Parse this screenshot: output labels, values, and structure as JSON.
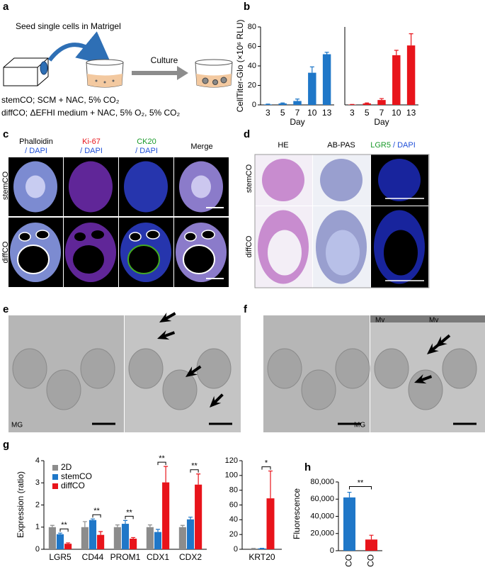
{
  "panel_labels": [
    "a",
    "b",
    "c",
    "d",
    "e",
    "f",
    "g",
    "h"
  ],
  "panel_a": {
    "seed": "Seed single cells in Matrigel",
    "culture": "Culture",
    "stemco_condition": "stemCO; SCM + NAC, 5% CO₂",
    "diffco_condition": "diffCO; ΔEFHI medium + NAC, 5% O₂, 5% CO₂"
  },
  "panel_c": {
    "headers": [
      {
        "stain": "Phalloidin",
        "counter": "/ DAPI"
      },
      {
        "stain": "Ki-67",
        "counter": "/ DAPI"
      },
      {
        "stain": "CK20",
        "counter": "/ DAPI"
      },
      {
        "stain": "Merge"
      }
    ],
    "rows": [
      "stemCO",
      "diffCO"
    ]
  },
  "panel_d": {
    "headers": [
      {
        "stain": "HE"
      },
      {
        "stain": "AB-PAS"
      },
      {
        "stain": "LGR5",
        "counter": "/ DAPI"
      }
    ],
    "rows": [
      "stemCO",
      "diffCO"
    ]
  },
  "panel_e": {
    "labels": [
      "MG"
    ]
  },
  "panel_f": {
    "labels": [
      "Mv",
      "Mv",
      "MG"
    ]
  },
  "chart_data": [
    {
      "type": "bar",
      "ylabel": "CellTiter-Glo (×10⁶ RLU)",
      "xlabel": "Day",
      "categories": [
        "3",
        "5",
        "7",
        "10",
        "13"
      ],
      "values": [
        0.5,
        1.5,
        4,
        33,
        52
      ],
      "errors": [
        0.3,
        0.5,
        2,
        6,
        2
      ],
      "color": "#1f77c8",
      "ylim": [
        0,
        80
      ],
      "yticks": [
        0,
        20,
        40,
        60,
        80
      ]
    },
    {
      "type": "bar",
      "xlabel": "Day",
      "categories": [
        "3",
        "5",
        "7",
        "10",
        "13"
      ],
      "values": [
        0.3,
        1.5,
        5,
        51,
        61
      ],
      "errors": [
        0.2,
        0.5,
        1.5,
        5,
        12
      ],
      "color": "#e8141b",
      "ylim": [
        0,
        80
      ]
    },
    {
      "type": "bar",
      "ylabel": "Expression (ratio)",
      "categories": [
        "LGR5",
        "CD44",
        "PROM1",
        "CDX1",
        "CDX2"
      ],
      "series": [
        {
          "name": "2D",
          "color": "#8c8c8c",
          "values": [
            1,
            1,
            1,
            1,
            1
          ],
          "errors": [
            0.08,
            0.25,
            0.1,
            0.1,
            0.08
          ]
        },
        {
          "name": "stemCO",
          "color": "#1f77c8",
          "values": [
            0.68,
            1.32,
            1.15,
            0.78,
            1.35
          ],
          "errors": [
            0.05,
            0.05,
            0.15,
            0.12,
            0.1
          ]
        },
        {
          "name": "diffCO",
          "color": "#e8141b",
          "values": [
            0.25,
            0.65,
            0.48,
            3.02,
            2.92
          ],
          "errors": [
            0.04,
            0.15,
            0.05,
            0.72,
            0.48
          ]
        }
      ],
      "significance": [
        "**",
        "**",
        "**",
        "**",
        "**"
      ],
      "ylim": [
        0,
        4
      ],
      "yticks": [
        0,
        1,
        2,
        3,
        4
      ]
    },
    {
      "type": "bar",
      "categories": [
        "KRT20"
      ],
      "series": [
        {
          "color": "#8c8c8c",
          "values": [
            1
          ],
          "errors": [
            0.2
          ]
        },
        {
          "color": "#1f77c8",
          "values": [
            1.2
          ],
          "errors": [
            0.2
          ]
        },
        {
          "color": "#e8141b",
          "values": [
            69
          ],
          "errors": [
            37
          ]
        }
      ],
      "significance": [
        "*"
      ],
      "ylim": [
        0,
        120
      ],
      "yticks": [
        0,
        20,
        40,
        60,
        80,
        100,
        120
      ]
    },
    {
      "type": "bar",
      "ylabel": "Fluorescence",
      "categories": [
        "stemCO",
        "diffCO"
      ],
      "values": [
        62000,
        13000
      ],
      "errors": [
        6000,
        5000
      ],
      "colors": [
        "#1f77c8",
        "#e8141b"
      ],
      "annotation": "**",
      "ylim": [
        0,
        80000
      ],
      "yticks": [
        0,
        {
          "value": 20000,
          "label": "20,000"
        },
        {
          "value": 40000,
          "label": "40,000"
        },
        {
          "value": 60000,
          "label": "60,000"
        },
        {
          "value": 80000,
          "label": "80,000"
        }
      ]
    }
  ]
}
